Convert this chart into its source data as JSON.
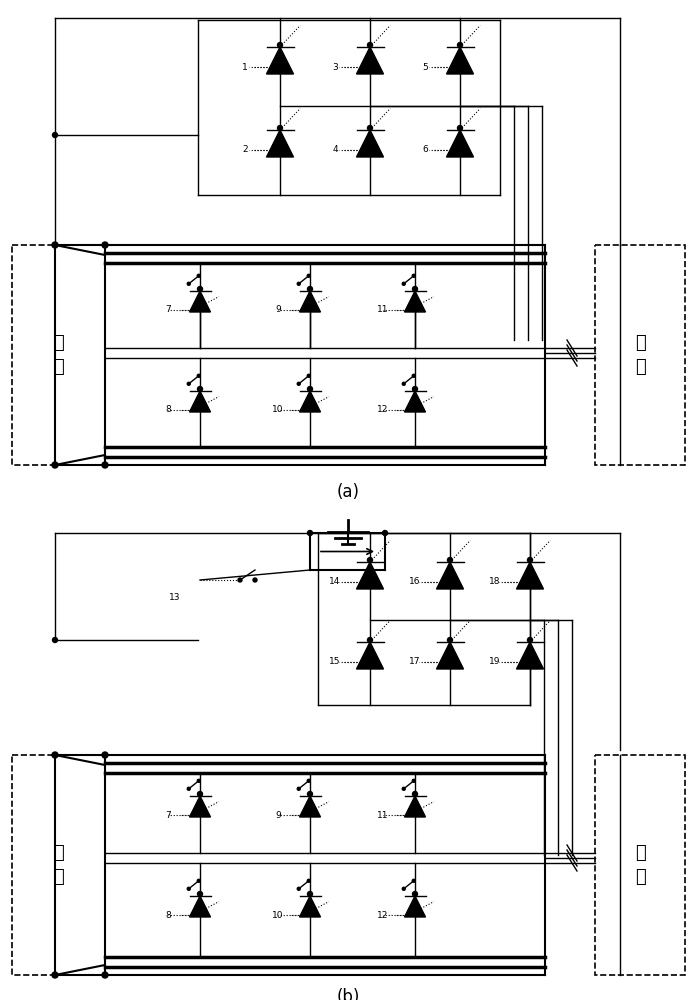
{
  "fig_width": 6.97,
  "fig_height": 10.0,
  "dpi": 100,
  "label_a": "(a)",
  "label_b": "(b)",
  "label_dianyuan": "电源",
  "label_dianji": "电机"
}
